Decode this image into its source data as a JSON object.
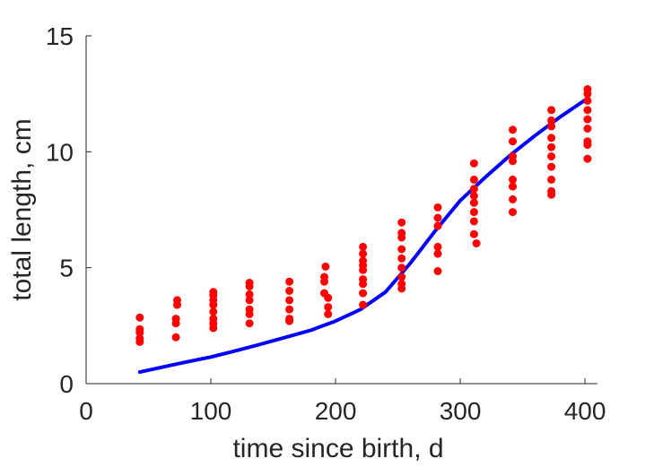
{
  "chart_data": {
    "type": "scatter",
    "title": "",
    "xlabel": "time since birth, d",
    "ylabel": "total length, cm",
    "xlim": [
      0,
      410
    ],
    "ylim": [
      0,
      15
    ],
    "xticks": [
      0,
      100,
      200,
      300,
      400
    ],
    "yticks": [
      0,
      5,
      10,
      15
    ],
    "grid": false,
    "box": false,
    "colors": {
      "observations": "#ff0000",
      "model": "#0000ff",
      "axes": "#262626"
    },
    "series": [
      {
        "type": "scatter",
        "points": [
          [
            43,
            1.8
          ],
          [
            43,
            1.95
          ],
          [
            43,
            2.2
          ],
          [
            43,
            2.35
          ],
          [
            43,
            2.85
          ],
          [
            72,
            2.0
          ],
          [
            72,
            2.6
          ],
          [
            72,
            2.8
          ],
          [
            73,
            3.4
          ],
          [
            73,
            3.6
          ],
          [
            102,
            2.4
          ],
          [
            102,
            2.6
          ],
          [
            102,
            2.8
          ],
          [
            102,
            3.1
          ],
          [
            102,
            3.4
          ],
          [
            102,
            3.6
          ],
          [
            102,
            3.8
          ],
          [
            102,
            3.95
          ],
          [
            131,
            2.6
          ],
          [
            131,
            3.0
          ],
          [
            131,
            3.2
          ],
          [
            131,
            3.6
          ],
          [
            131,
            3.85
          ],
          [
            131,
            4.2
          ],
          [
            131,
            4.35
          ],
          [
            163,
            2.7
          ],
          [
            163,
            2.8
          ],
          [
            163,
            3.2
          ],
          [
            163,
            3.6
          ],
          [
            163,
            4.0
          ],
          [
            163,
            4.4
          ],
          [
            191,
            3.9
          ],
          [
            191,
            4.4
          ],
          [
            191,
            4.6
          ],
          [
            192,
            5.05
          ],
          [
            194,
            3.0
          ],
          [
            194,
            3.3
          ],
          [
            194,
            3.7
          ],
          [
            222,
            3.4
          ],
          [
            222,
            3.9
          ],
          [
            222,
            4.3
          ],
          [
            222,
            4.5
          ],
          [
            222,
            4.9
          ],
          [
            222,
            5.1
          ],
          [
            222,
            5.3
          ],
          [
            222,
            5.6
          ],
          [
            222,
            5.9
          ],
          [
            253,
            4.1
          ],
          [
            253,
            4.3
          ],
          [
            253,
            4.6
          ],
          [
            253,
            5.0
          ],
          [
            253,
            5.4
          ],
          [
            253,
            5.8
          ],
          [
            253,
            6.3
          ],
          [
            253,
            6.5
          ],
          [
            253,
            6.95
          ],
          [
            282,
            4.85
          ],
          [
            282,
            5.6
          ],
          [
            282,
            5.9
          ],
          [
            282,
            6.8
          ],
          [
            282,
            7.15
          ],
          [
            282,
            7.6
          ],
          [
            311,
            6.45
          ],
          [
            311,
            7.0
          ],
          [
            311,
            7.4
          ],
          [
            311,
            7.8
          ],
          [
            311,
            8.1
          ],
          [
            311,
            8.4
          ],
          [
            311,
            8.8
          ],
          [
            311,
            9.5
          ],
          [
            313,
            6.05
          ],
          [
            342,
            7.4
          ],
          [
            342,
            7.95
          ],
          [
            342,
            8.5
          ],
          [
            342,
            8.8
          ],
          [
            342,
            9.6
          ],
          [
            342,
            9.8
          ],
          [
            342,
            10.45
          ],
          [
            342,
            10.95
          ],
          [
            373,
            8.15
          ],
          [
            373,
            8.3
          ],
          [
            373,
            8.8
          ],
          [
            373,
            9.35
          ],
          [
            373,
            9.8
          ],
          [
            373,
            10.2
          ],
          [
            373,
            10.6
          ],
          [
            373,
            11.1
          ],
          [
            373,
            11.35
          ],
          [
            373,
            11.8
          ],
          [
            402,
            9.7
          ],
          [
            402,
            10.3
          ],
          [
            402,
            10.45
          ],
          [
            402,
            11.0
          ],
          [
            402,
            11.4
          ],
          [
            402,
            11.8
          ],
          [
            402,
            12.2
          ],
          [
            402,
            12.5
          ],
          [
            402,
            12.7
          ]
        ]
      },
      {
        "type": "line",
        "x": [
          43,
          60,
          80,
          100,
          120,
          140,
          160,
          180,
          200,
          220,
          240,
          260,
          280,
          300,
          320,
          340,
          360,
          380,
          402
        ],
        "y": [
          0.5,
          0.7,
          0.93,
          1.15,
          1.42,
          1.7,
          2.0,
          2.3,
          2.7,
          3.2,
          3.95,
          5.2,
          6.6,
          7.9,
          8.9,
          9.85,
          10.7,
          11.5,
          12.3
        ]
      }
    ]
  }
}
